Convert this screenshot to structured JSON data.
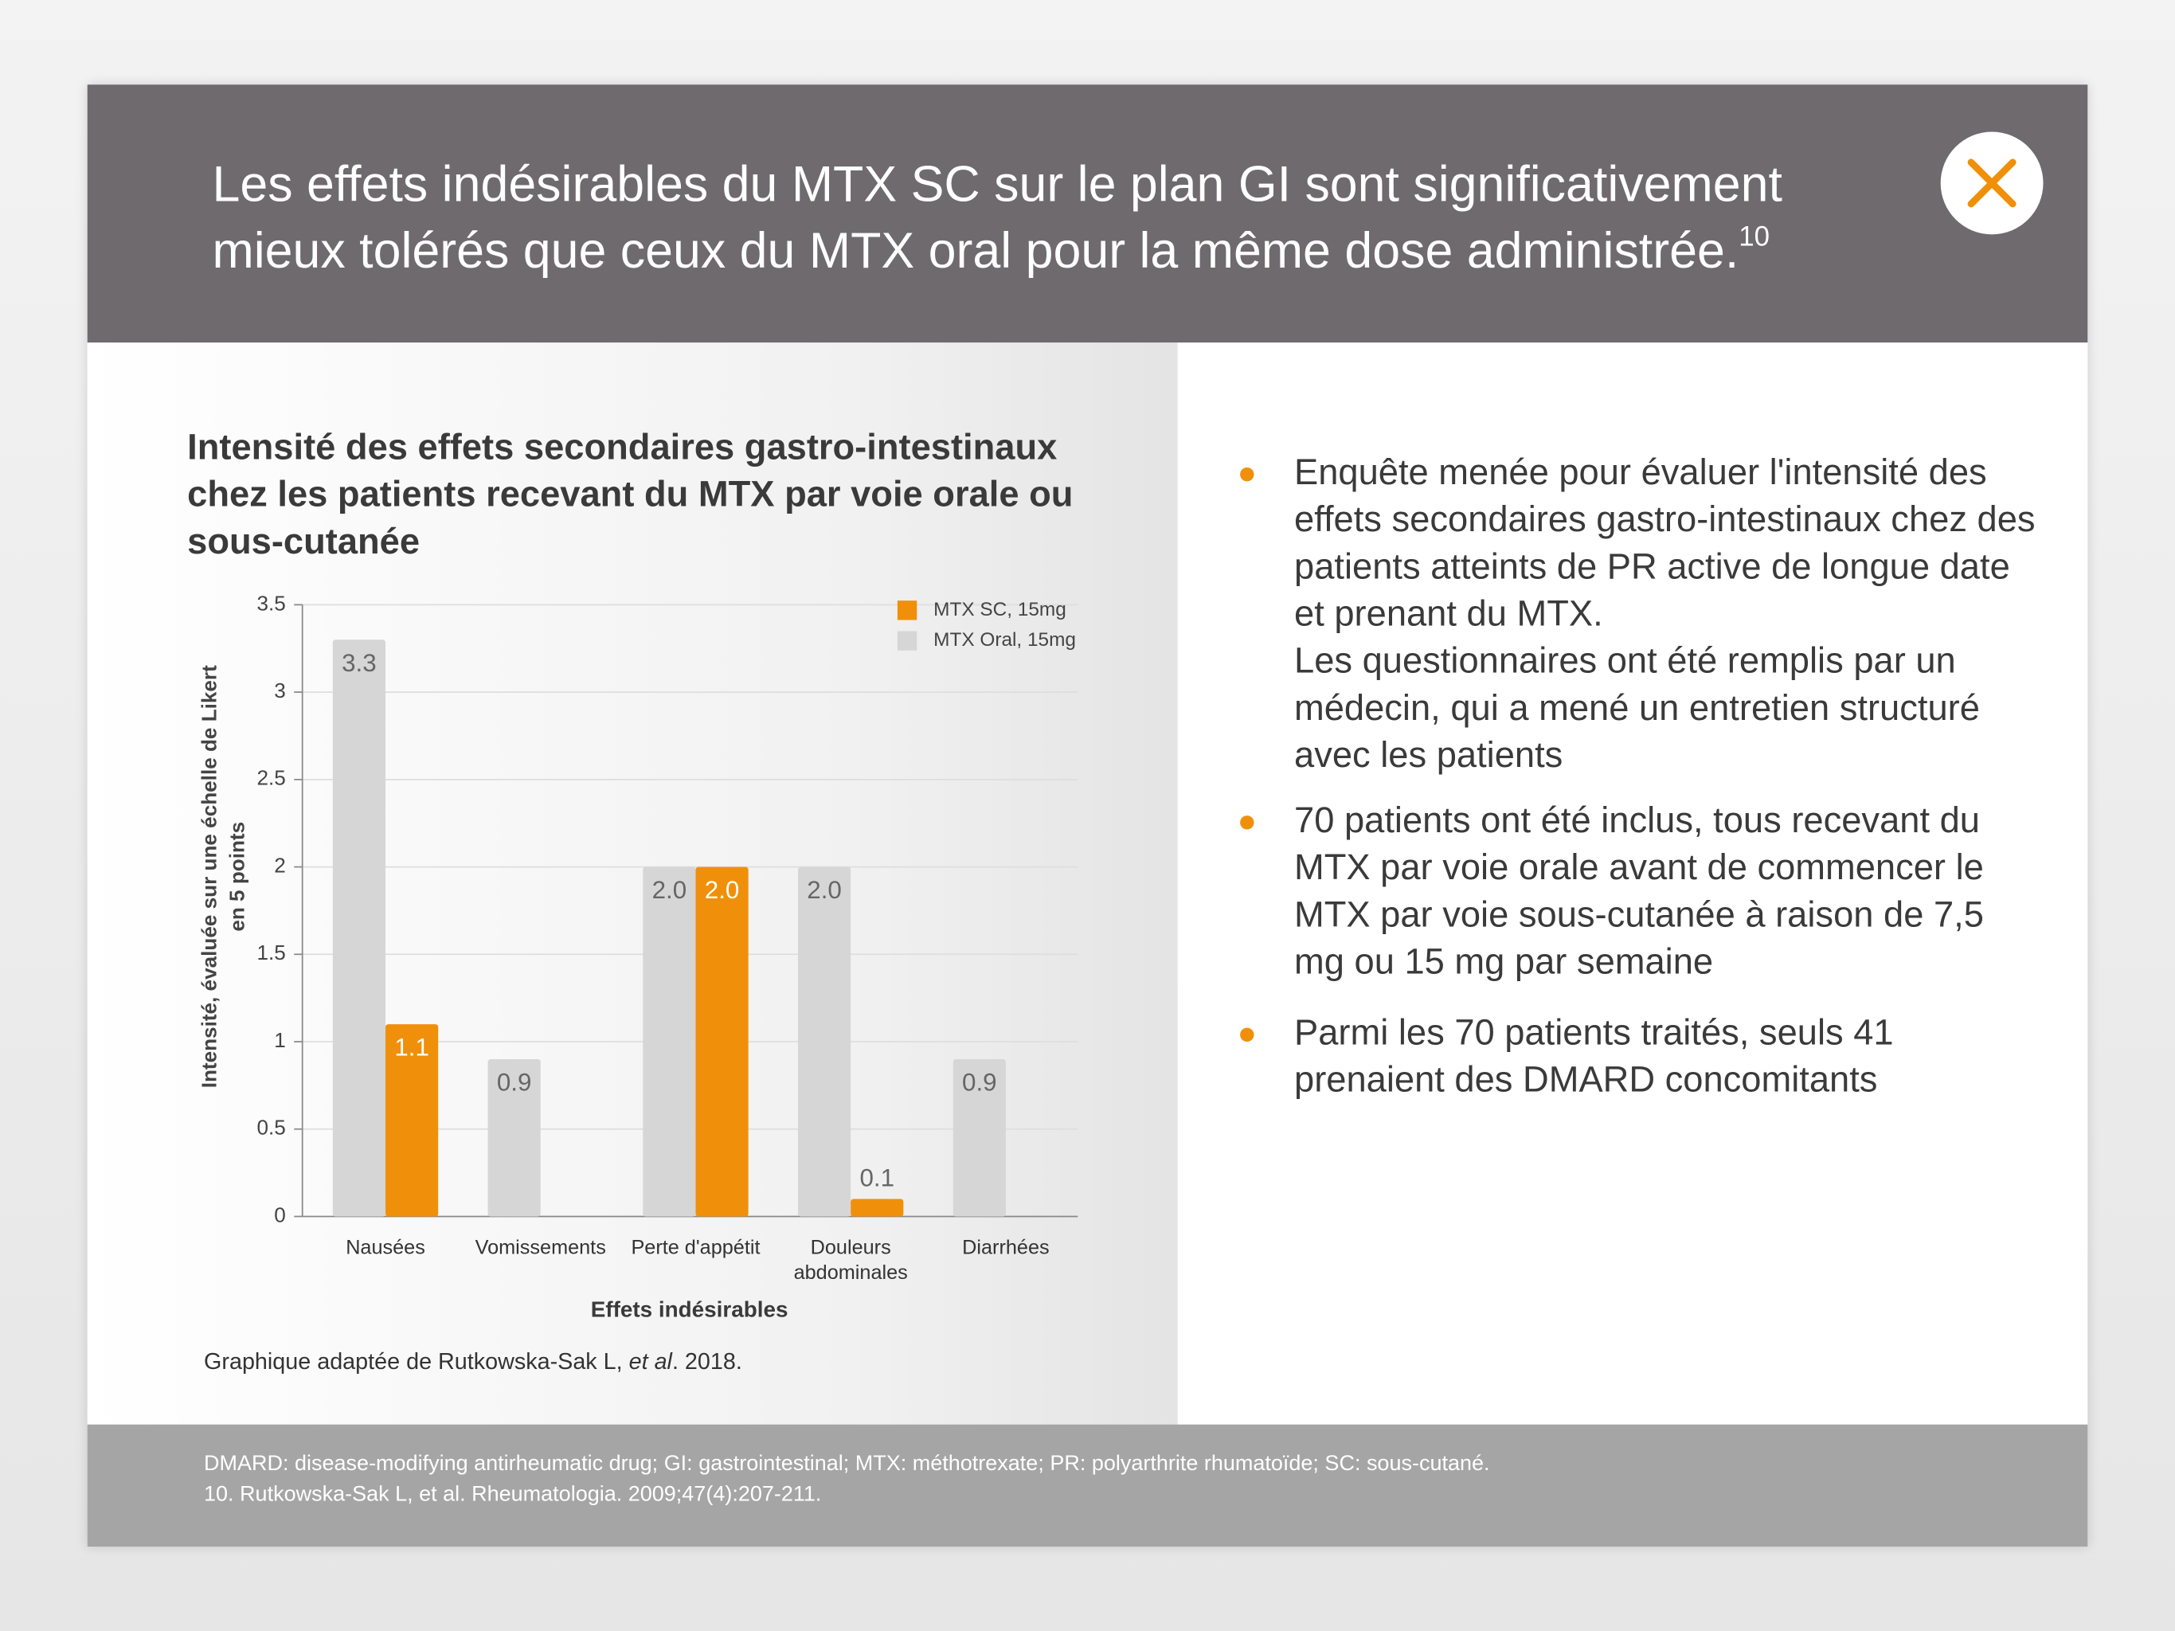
{
  "header": {
    "title": "Les effets indésirables du MTX SC sur le plan GI sont significativement mieux tolérés que ceux du MTX oral pour la même dose administrée.",
    "ref_mark": "10"
  },
  "chart_data": {
    "type": "bar",
    "title": "Intensité des effets secondaires gastro-intestinaux chez les patients recevant du MTX par voie orale ou sous-cutanée",
    "categories": [
      "Nausées",
      "Vomissements",
      "Perte d'appétit",
      "Douleurs abdominales",
      "Diarrhées"
    ],
    "series": [
      {
        "name": "MTX Oral, 15mg",
        "color": "#d6d6d6",
        "values": [
          3.3,
          0.9,
          2.0,
          2.0,
          0.9
        ],
        "value_labels": [
          "3.3",
          "0.9",
          "2.0",
          "2.0",
          "0.9"
        ]
      },
      {
        "name": "MTX SC, 15mg",
        "color": "#f0900a",
        "values": [
          1.1,
          null,
          2.0,
          0.1,
          null
        ],
        "value_labels": [
          "1.1",
          null,
          "2.0",
          "0.1",
          null
        ]
      }
    ],
    "ylim": [
      0,
      3.5
    ],
    "yticks": [
      0,
      0.5,
      1,
      1.5,
      2,
      2.5,
      3,
      3.5
    ],
    "grid": true,
    "y_label": [
      "Intensité, évaluée sur une échelle de Likert",
      "en 5 points"
    ],
    "x_label": "Effets indésirables",
    "legend": "top-right"
  },
  "caption": {
    "before": "Graphique adaptée de Rutkowska-Sak L, ",
    "italic": "et al",
    "after": ". 2018."
  },
  "bullets": [
    [
      "Enquête menée pour évaluer l'intensité des effets secondaires gastro-intestinaux chez des patients atteints de PR active de longue date et prenant du MTX.",
      "Les questionnaires ont été remplis par un médecin, qui a mené un entretien structuré avec les patients"
    ],
    [
      "70 patients ont été inclus, tous recevant du MTX par voie orale avant de commencer le MTX par voie sous-cutanée à raison de 7,5 mg ou 15 mg par semaine"
    ],
    [
      "Parmi les 70 patients traités, seuls 41 prenaient des DMARD concomitants"
    ]
  ],
  "footer": [
    "DMARD: disease-modifying antirheumatic drug; GI: gastrointestinal; MTX: méthotrexate; PR: polyarthrite rhumatoïde; SC: sous-cutané.",
    "10. Rutkowska-Sak L, et al. Rheumatologia. 2009;47(4):207-211."
  ]
}
